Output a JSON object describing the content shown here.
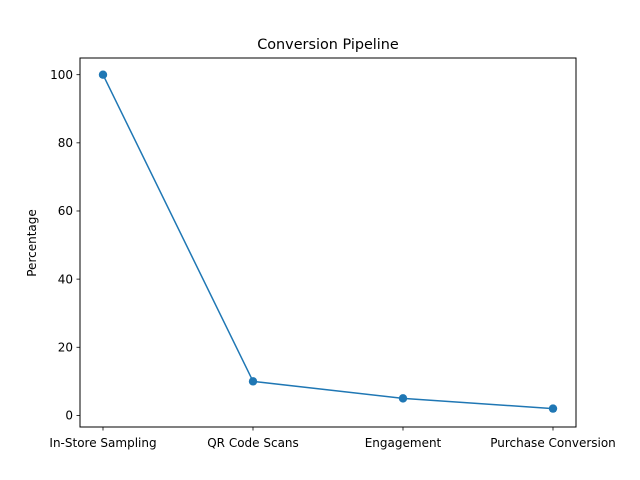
{
  "chart_data": {
    "type": "line",
    "title": "Conversion Pipeline",
    "xlabel": "",
    "ylabel": "Percentage",
    "categories": [
      "In-Store Sampling",
      "QR Code Scans",
      "Engagement",
      "Purchase Conversion"
    ],
    "series": [
      {
        "values": [
          100,
          10,
          5,
          2
        ],
        "color": "#1f77b4",
        "marker": "circle"
      }
    ],
    "ylim": [
      -3.4,
      104.9
    ],
    "yticks": [
      0,
      20,
      40,
      60,
      80,
      100
    ],
    "grid": false,
    "legend": "none"
  }
}
